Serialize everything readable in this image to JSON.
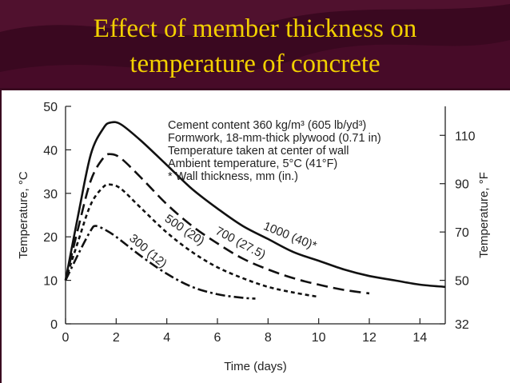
{
  "slide": {
    "title_line1": "Effect of member thickness on",
    "title_line2": "temperature of concrete",
    "title_color": "#f2d000",
    "background_color": "#3a0820"
  },
  "chart_data": {
    "type": "line",
    "xlabel": "Time (days)",
    "ylabel": "Temperature, °C",
    "ylabel_right": "Temperature, °F",
    "xlim": [
      0,
      15
    ],
    "ylim": [
      0,
      50
    ],
    "x_ticks": [
      0,
      2,
      4,
      6,
      8,
      10,
      12,
      14
    ],
    "y_ticks": [
      0,
      10,
      20,
      30,
      40,
      50
    ],
    "y_ticks_right": [
      32,
      50,
      70,
      90,
      110
    ],
    "grid": false,
    "legend_notes": [
      "Cement content 360 kg/m³ (605 lb/yd³)",
      "Formwork, 18-mm-thick plywood (0.71 in)",
      "Temperature taken at center of wall",
      "Ambient temperature, 5°C (41°F)",
      "* Wall thickness, mm (in.)"
    ],
    "series": [
      {
        "name": "1000 (40)*",
        "style": "solid",
        "x": [
          0,
          0.5,
          1,
          1.5,
          1.8,
          2.2,
          3,
          4,
          5,
          6,
          7,
          8,
          9,
          10,
          11,
          12,
          13,
          14,
          15
        ],
        "y": [
          10,
          25,
          39,
          45,
          46.3,
          45.8,
          42,
          36.5,
          31,
          26.5,
          22.5,
          19.5,
          16.5,
          14.5,
          12.5,
          11,
          10,
          9,
          8.5
        ]
      },
      {
        "name": "700 (27.5)",
        "style": "dashed",
        "x": [
          0,
          0.5,
          1,
          1.5,
          1.8,
          2.2,
          3,
          4,
          5,
          6,
          7,
          8,
          9,
          10,
          11,
          12
        ],
        "y": [
          10,
          22,
          33,
          38.2,
          39,
          38,
          33.5,
          27.5,
          22.5,
          18.5,
          15,
          12.5,
          10.5,
          9,
          7.8,
          7
        ]
      },
      {
        "name": "500 (20)",
        "style": "dotted",
        "x": [
          0,
          0.5,
          1,
          1.5,
          1.8,
          2.2,
          3,
          4,
          5,
          6,
          7,
          8,
          9,
          10
        ],
        "y": [
          10,
          19,
          27.5,
          31.5,
          32,
          31,
          26.5,
          21,
          16.5,
          13,
          10.5,
          8.5,
          7.2,
          6.2
        ]
      },
      {
        "name": "300 (12)",
        "style": "dashdot",
        "x": [
          0,
          0.5,
          1,
          1.2,
          1.6,
          2,
          3,
          4,
          5,
          6,
          7,
          7.5
        ],
        "y": [
          10,
          16,
          21.5,
          22.5,
          21.5,
          20,
          15.5,
          11.5,
          8.5,
          6.8,
          6,
          5.8
        ]
      }
    ],
    "series_label_angles": [
      22,
      28,
      34,
      40
    ]
  }
}
